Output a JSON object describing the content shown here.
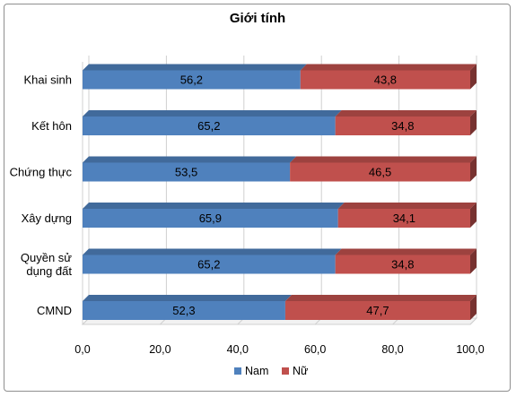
{
  "chart_data": {
    "type": "bar",
    "orientation": "horizontal",
    "stacked": true,
    "title": "Giới tính",
    "categories": [
      "Khai sinh",
      "Kết hôn",
      "Chứng thực",
      "Xây dựng",
      "Quyền sử dụng đất",
      "CMND"
    ],
    "category_lines": [
      [
        "Khai sinh"
      ],
      [
        "Kết hôn"
      ],
      [
        "Chứng thực"
      ],
      [
        "Xây dựng"
      ],
      [
        "Quyền sử",
        "dụng đất"
      ],
      [
        "CMND"
      ]
    ],
    "series": [
      {
        "name": "Nam",
        "values": [
          56.2,
          65.2,
          53.5,
          65.9,
          65.2,
          52.3
        ],
        "labels": [
          "56,2",
          "65,2",
          "53,5",
          "65,9",
          "65,2",
          "52,3"
        ],
        "color": "#4f81bd"
      },
      {
        "name": "Nữ",
        "values": [
          43.8,
          34.8,
          46.5,
          34.1,
          34.8,
          47.7
        ],
        "labels": [
          "43,8",
          "34,8",
          "46,5",
          "34,1",
          "34,8",
          "47,7"
        ],
        "color": "#c0504d"
      }
    ],
    "xlim": [
      0,
      100
    ],
    "xticks": [
      0,
      20,
      40,
      60,
      80,
      100
    ],
    "xtick_labels": [
      "0,0",
      "20,0",
      "40,0",
      "60,0",
      "80,0",
      "100,0"
    ],
    "grid": true,
    "legend_position": "bottom",
    "bar_style": "3d"
  }
}
